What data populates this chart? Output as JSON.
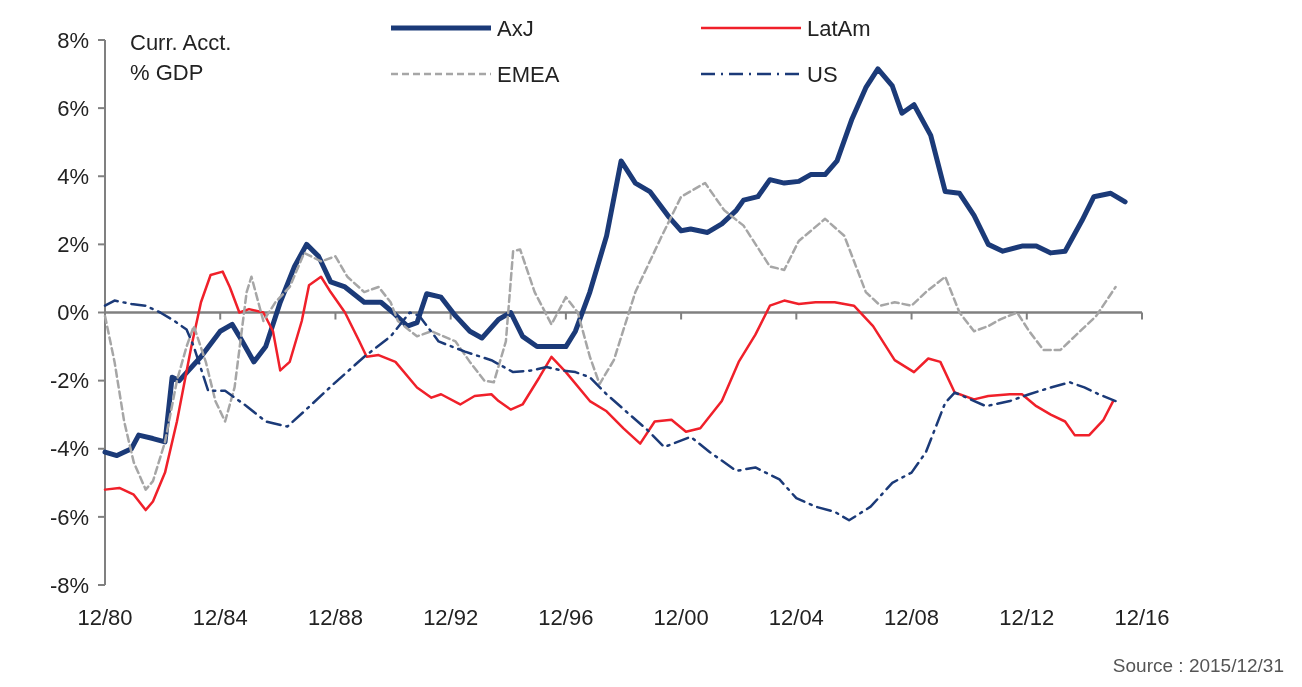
{
  "chart_data": {
    "type": "line",
    "ylabel": "Curr. Acct. % GDP",
    "xlim": [
      "1980-12",
      "2016-12"
    ],
    "xticks": [
      {
        "value": "1980-12",
        "label": "12/80"
      },
      {
        "value": "1984-12",
        "label": "12/84"
      },
      {
        "value": "1988-12",
        "label": "12/88"
      },
      {
        "value": "1992-12",
        "label": "12/92"
      },
      {
        "value": "1996-12",
        "label": "12/96"
      },
      {
        "value": "2000-12",
        "label": "12/00"
      },
      {
        "value": "2004-12",
        "label": "12/04"
      },
      {
        "value": "2008-12",
        "label": "12/08"
      },
      {
        "value": "2012-12",
        "label": "12/12"
      },
      {
        "value": "2016-12",
        "label": "12/16"
      }
    ],
    "ylim": [
      -8,
      8
    ],
    "yticks": [
      {
        "value": -8,
        "label": "-8%"
      },
      {
        "value": -6,
        "label": "-6%"
      },
      {
        "value": -4,
        "label": "-4%"
      },
      {
        "value": -2,
        "label": "-2%"
      },
      {
        "value": 0,
        "label": "0%"
      },
      {
        "value": 2,
        "label": "2%"
      },
      {
        "value": 4,
        "label": "4%"
      },
      {
        "value": 6,
        "label": "6%"
      },
      {
        "value": 8,
        "label": "8%"
      }
    ],
    "grid": false,
    "ref_lines": [
      {
        "axis": "y",
        "value": 0,
        "color": "#808080"
      }
    ],
    "legend": "top",
    "marker": "none",
    "annotations": [
      "Source : 2015/12/31"
    ],
    "series": [
      {
        "name": "AxJ",
        "color": "#1b3a78",
        "line_style": "solid",
        "x": [
          "1980-12",
          "1981-05",
          "1981-11",
          "1982-02",
          "1982-08",
          "1983-01",
          "1983-04",
          "1983-07",
          "1984-04",
          "1984-12",
          "1985-05",
          "1985-08",
          "1986-02",
          "1986-07",
          "1987-01",
          "1987-07",
          "1987-12",
          "1988-05",
          "1988-10",
          "1989-04",
          "1989-12",
          "1990-07",
          "1990-12",
          "1991-06",
          "1991-10",
          "1992-02",
          "1992-08",
          "1993-02",
          "1993-08",
          "1994-01",
          "1994-08",
          "1995-01",
          "1995-06",
          "1995-12",
          "1996-07",
          "1996-12",
          "1997-04",
          "1997-10",
          "1998-05",
          "1998-11",
          "1999-05",
          "1999-11",
          "2000-07",
          "2000-12",
          "2001-04",
          "2001-11",
          "2002-05",
          "2002-11",
          "2003-02",
          "2003-08",
          "2004-01",
          "2004-07",
          "2005-01",
          "2005-06",
          "2005-12",
          "2006-05",
          "2006-11",
          "2007-05",
          "2007-10",
          "2008-04",
          "2008-08",
          "2009-01",
          "2009-08",
          "2010-02",
          "2010-08",
          "2011-02",
          "2011-08",
          "2012-02",
          "2012-10",
          "2013-04",
          "2013-10",
          "2014-04",
          "2014-11",
          "2015-04",
          "2015-11",
          "2016-05"
        ],
        "values": [
          -4.1,
          -4.2,
          -4.0,
          -3.6,
          -3.7,
          -3.8,
          -1.9,
          -2.0,
          -1.3,
          -0.55,
          -0.35,
          -0.7,
          -1.45,
          -1.0,
          0.3,
          1.35,
          2.0,
          1.65,
          0.9,
          0.75,
          0.3,
          0.3,
          0.0,
          -0.4,
          -0.3,
          0.55,
          0.45,
          -0.1,
          -0.55,
          -0.75,
          -0.2,
          0.0,
          -0.7,
          -1.0,
          -1.0,
          -1.0,
          -0.55,
          0.6,
          2.25,
          4.45,
          3.8,
          3.55,
          2.8,
          2.4,
          2.45,
          2.35,
          2.6,
          3.0,
          3.3,
          3.4,
          3.9,
          3.8,
          3.85,
          4.05,
          4.05,
          4.45,
          5.65,
          6.6,
          7.15,
          6.65,
          5.85,
          6.1,
          5.2,
          3.55,
          3.5,
          2.85,
          2.0,
          1.8,
          1.95,
          1.95,
          1.75,
          1.8,
          2.7,
          3.4,
          3.5,
          3.25
        ]
      },
      {
        "name": "LatAm",
        "color": "#f0202a",
        "line_style": "solid",
        "x": [
          "1980-12",
          "1981-06",
          "1981-12",
          "1982-05",
          "1982-08",
          "1983-01",
          "1983-06",
          "1983-12",
          "1984-04",
          "1984-08",
          "1985-01",
          "1985-04",
          "1985-08",
          "1985-12",
          "1986-06",
          "1986-10",
          "1987-01",
          "1987-05",
          "1987-10",
          "1988-01",
          "1988-06",
          "1988-10",
          "1989-04",
          "1989-10",
          "1990-01",
          "1990-06",
          "1991-01",
          "1991-10",
          "1992-04",
          "1992-08",
          "1993-04",
          "1993-10",
          "1994-05",
          "1994-08",
          "1995-01",
          "1995-06",
          "1996-01",
          "1996-06",
          "1996-12",
          "1997-10",
          "1998-05",
          "1998-12",
          "1999-07",
          "2000-01",
          "2000-08",
          "2001-02",
          "2001-08",
          "2002-05",
          "2002-12",
          "2003-07",
          "2004-01",
          "2004-07",
          "2005-01",
          "2005-08",
          "2006-04",
          "2006-12",
          "2007-08",
          "2008-05",
          "2009-01",
          "2009-07",
          "2009-12",
          "2010-06",
          "2011-02",
          "2011-08",
          "2012-05",
          "2012-10",
          "2013-04",
          "2013-10",
          "2014-04",
          "2014-08",
          "2015-02",
          "2015-08",
          "2015-12"
        ],
        "values": [
          -5.2,
          -5.15,
          -5.35,
          -5.8,
          -5.55,
          -4.7,
          -3.2,
          -1.0,
          0.3,
          1.1,
          1.2,
          0.75,
          0.0,
          0.1,
          0.0,
          -0.55,
          -1.7,
          -1.45,
          -0.25,
          0.8,
          1.05,
          0.6,
          0.0,
          -0.85,
          -1.3,
          -1.25,
          -1.45,
          -2.2,
          -2.5,
          -2.4,
          -2.7,
          -2.45,
          -2.4,
          -2.6,
          -2.85,
          -2.7,
          -1.9,
          -1.3,
          -1.75,
          -2.6,
          -2.9,
          -3.4,
          -3.85,
          -3.2,
          -3.15,
          -3.5,
          -3.4,
          -2.6,
          -1.45,
          -0.65,
          0.2,
          0.35,
          0.25,
          0.3,
          0.3,
          0.2,
          -0.4,
          -1.4,
          -1.75,
          -1.35,
          -1.45,
          -2.35,
          -2.55,
          -2.45,
          -2.4,
          -2.4,
          -2.75,
          -3.0,
          -3.2,
          -3.6,
          -3.6,
          -3.15,
          -2.6
        ]
      },
      {
        "name": "EMEA",
        "color": "#a6a6a6",
        "line_style": "dashed",
        "x": [
          "1980-12",
          "1981-04",
          "1981-08",
          "1981-12",
          "1982-05",
          "1982-08",
          "1983-01",
          "1983-06",
          "1983-10",
          "1984-01",
          "1984-06",
          "1984-10",
          "1985-02",
          "1985-06",
          "1985-11",
          "1986-01",
          "1986-06",
          "1986-11",
          "1987-05",
          "1987-11",
          "1988-06",
          "1988-12",
          "1989-05",
          "1989-12",
          "1990-06",
          "1990-11",
          "1991-02",
          "1991-10",
          "1992-04",
          "1993-02",
          "1993-08",
          "1994-02",
          "1994-06",
          "1994-11",
          "1995-02",
          "1995-05",
          "1995-11",
          "1996-06",
          "1996-12",
          "1997-05",
          "1997-10",
          "1998-02",
          "1998-08",
          "1999-05",
          "2000-04",
          "2000-12",
          "2001-10",
          "2002-06",
          "2003-02",
          "2004-01",
          "2004-07",
          "2005-01",
          "2005-12",
          "2006-08",
          "2007-05",
          "2007-11",
          "2008-05",
          "2008-12",
          "2009-06",
          "2010-02",
          "2010-08",
          "2011-02",
          "2011-08",
          "2012-01",
          "2012-08",
          "2013-01",
          "2013-07",
          "2014-02",
          "2014-08",
          "2015-05",
          "2016-01"
        ],
        "values": [
          -0.1,
          -1.45,
          -3.2,
          -4.4,
          -5.2,
          -4.95,
          -3.8,
          -2.0,
          -1.0,
          -0.4,
          -1.45,
          -2.6,
          -3.2,
          -2.2,
          0.6,
          1.05,
          -0.25,
          0.3,
          0.75,
          1.75,
          1.5,
          1.65,
          1.05,
          0.6,
          0.75,
          0.3,
          -0.25,
          -0.7,
          -0.55,
          -0.85,
          -1.45,
          -2.0,
          -2.05,
          -0.85,
          1.8,
          1.85,
          0.6,
          -0.35,
          0.45,
          0.0,
          -1.3,
          -2.1,
          -1.4,
          0.6,
          2.25,
          3.4,
          3.8,
          3.0,
          2.55,
          1.35,
          1.25,
          2.1,
          2.75,
          2.25,
          0.6,
          0.2,
          0.3,
          0.2,
          0.6,
          1.05,
          0.0,
          -0.55,
          -0.4,
          -0.2,
          0.0,
          -0.55,
          -1.1,
          -1.1,
          -0.7,
          -0.1,
          0.75
        ]
      },
      {
        "name": "US",
        "color": "#1b3a78",
        "line_style": "dashdot",
        "x": [
          "1980-12",
          "1981-04",
          "1981-11",
          "1982-05",
          "1982-11",
          "1983-05",
          "1983-10",
          "1984-01",
          "1984-07",
          "1985-02",
          "1985-11",
          "1986-07",
          "1987-04",
          "1987-11",
          "1988-12",
          "1989-12",
          "1990-11",
          "1991-07",
          "1991-11",
          "1992-07",
          "1993-06",
          "1994-05",
          "1995-02",
          "1995-10",
          "1996-04",
          "1996-10",
          "1997-04",
          "1997-10",
          "1998-05",
          "1999-01",
          "1999-10",
          "2000-05",
          "2001-04",
          "2001-12",
          "2002-11",
          "2003-07",
          "2004-05",
          "2004-12",
          "2005-08",
          "2006-04",
          "2006-10",
          "2007-07",
          "2008-04",
          "2008-12",
          "2009-06",
          "2010-02",
          "2010-06",
          "2010-11",
          "2011-07",
          "2012-05",
          "2013-01",
          "2013-10",
          "2014-06",
          "2014-12",
          "2015-06",
          "2016-01"
        ],
        "values": [
          0.2,
          0.35,
          0.25,
          0.2,
          0.0,
          -0.25,
          -0.5,
          -1.0,
          -2.3,
          -2.3,
          -2.75,
          -3.2,
          -3.35,
          -2.9,
          -2.05,
          -1.3,
          -0.7,
          0.0,
          -0.1,
          -0.85,
          -1.15,
          -1.4,
          -1.75,
          -1.7,
          -1.6,
          -1.7,
          -1.75,
          -1.9,
          -2.4,
          -2.9,
          -3.45,
          -3.95,
          -3.65,
          -4.1,
          -4.65,
          -4.55,
          -4.9,
          -5.45,
          -5.7,
          -5.85,
          -6.1,
          -5.7,
          -5.0,
          -4.7,
          -4.1,
          -2.65,
          -2.35,
          -2.5,
          -2.75,
          -2.6,
          -2.4,
          -2.2,
          -2.05,
          -2.2,
          -2.4,
          -2.6
        ]
      }
    ]
  }
}
